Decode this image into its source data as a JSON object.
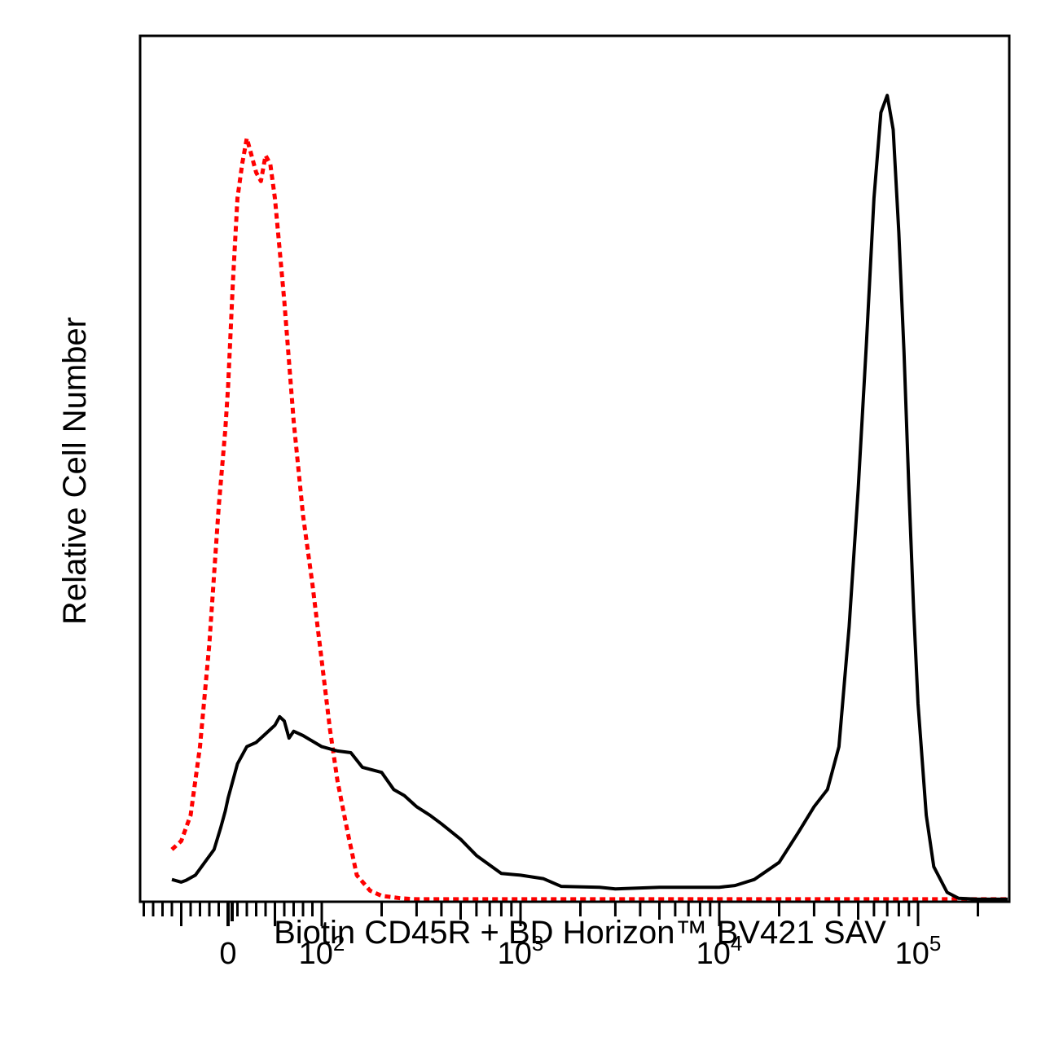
{
  "chart_data": {
    "type": "line",
    "xlabel": "Biotin CD45R + BD Horizon™ BV421 SAV",
    "ylabel": "Relative Cell Number",
    "xscale": "biexponential",
    "x_tick_labels": [
      {
        "value": 0,
        "base": "0",
        "exp": ""
      },
      {
        "value": 100,
        "base": "10",
        "exp": "2"
      },
      {
        "value": 1000,
        "base": "10",
        "exp": "3"
      },
      {
        "value": 10000,
        "base": "10",
        "exp": "4"
      },
      {
        "value": 100000,
        "base": "10",
        "exp": "5"
      }
    ],
    "y_ticks_shown": false,
    "grid": false,
    "legend": "none",
    "series": [
      {
        "style": "dotted",
        "color": "#ff0000",
        "points": [
          [
            -60,
            6
          ],
          [
            -50,
            7
          ],
          [
            -40,
            10
          ],
          [
            -30,
            18
          ],
          [
            -20,
            30
          ],
          [
            -10,
            46
          ],
          [
            -3,
            55
          ],
          [
            0,
            60
          ],
          [
            5,
            72
          ],
          [
            10,
            82
          ],
          [
            15,
            86
          ],
          [
            20,
            89
          ],
          [
            25,
            87
          ],
          [
            30,
            85
          ],
          [
            35,
            84
          ],
          [
            40,
            87
          ],
          [
            45,
            86
          ],
          [
            50,
            82
          ],
          [
            55,
            76
          ],
          [
            60,
            70
          ],
          [
            70,
            56
          ],
          [
            80,
            45
          ],
          [
            90,
            37
          ],
          [
            100,
            28
          ],
          [
            110,
            20
          ],
          [
            120,
            14
          ],
          [
            135,
            8
          ],
          [
            150,
            3
          ],
          [
            175,
            1.2
          ],
          [
            200,
            0.6
          ],
          [
            250,
            0.3
          ],
          [
            300,
            0.2
          ],
          [
            1000,
            0.2
          ],
          [
            10000,
            0.2
          ],
          [
            100000,
            0.2
          ],
          [
            300000,
            0.2
          ]
        ]
      },
      {
        "style": "solid",
        "color": "#000000",
        "points": [
          [
            -60,
            2.5
          ],
          [
            -50,
            2.2
          ],
          [
            -45,
            2.4
          ],
          [
            -35,
            3
          ],
          [
            -25,
            4.5
          ],
          [
            -15,
            6
          ],
          [
            -8,
            8.5
          ],
          [
            -3,
            10.5
          ],
          [
            0,
            12
          ],
          [
            10,
            16
          ],
          [
            20,
            18
          ],
          [
            30,
            18.5
          ],
          [
            40,
            19.5
          ],
          [
            50,
            20.5
          ],
          [
            55,
            21.5
          ],
          [
            60,
            21
          ],
          [
            65,
            19
          ],
          [
            70,
            19.8
          ],
          [
            80,
            19.3
          ],
          [
            100,
            18
          ],
          [
            120,
            17.5
          ],
          [
            140,
            17.3
          ],
          [
            160,
            15.6
          ],
          [
            200,
            15
          ],
          [
            230,
            13
          ],
          [
            260,
            12.3
          ],
          [
            300,
            11
          ],
          [
            350,
            10
          ],
          [
            400,
            9
          ],
          [
            500,
            7.2
          ],
          [
            600,
            5.3
          ],
          [
            800,
            3.2
          ],
          [
            1000,
            3
          ],
          [
            1300,
            2.6
          ],
          [
            1600,
            1.7
          ],
          [
            2500,
            1.6
          ],
          [
            3000,
            1.4
          ],
          [
            5000,
            1.6
          ],
          [
            8000,
            1.6
          ],
          [
            10000,
            1.6
          ],
          [
            12000,
            1.8
          ],
          [
            15000,
            2.5
          ],
          [
            20000,
            4.5
          ],
          [
            25000,
            8
          ],
          [
            30000,
            11
          ],
          [
            35000,
            13
          ],
          [
            40000,
            18
          ],
          [
            45000,
            32
          ],
          [
            50000,
            48
          ],
          [
            55000,
            65
          ],
          [
            60000,
            82
          ],
          [
            65000,
            92
          ],
          [
            70000,
            94
          ],
          [
            75000,
            90
          ],
          [
            80000,
            78
          ],
          [
            85000,
            64
          ],
          [
            90000,
            48
          ],
          [
            95000,
            34
          ],
          [
            100000,
            23
          ],
          [
            110000,
            10
          ],
          [
            120000,
            4
          ],
          [
            140000,
            1
          ],
          [
            160000,
            0.3
          ],
          [
            200000,
            0.2
          ],
          [
            300000,
            0.2
          ]
        ]
      }
    ]
  }
}
